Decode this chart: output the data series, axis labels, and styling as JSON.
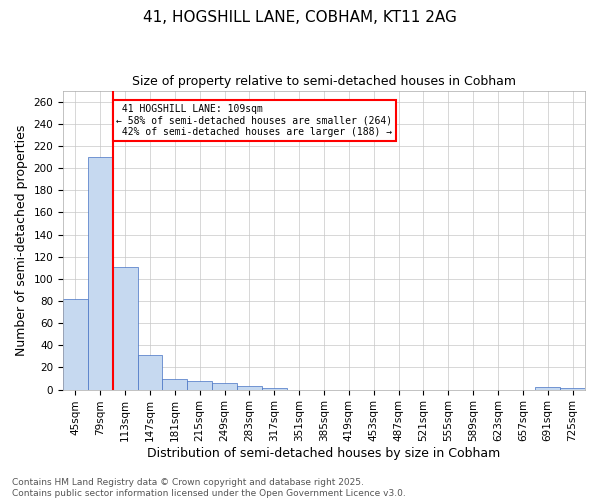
{
  "title": "41, HOGSHILL LANE, COBHAM, KT11 2AG",
  "subtitle": "Size of property relative to semi-detached houses in Cobham",
  "xlabel": "Distribution of semi-detached houses by size in Cobham",
  "ylabel": "Number of semi-detached properties",
  "categories": [
    "45sqm",
    "79sqm",
    "113sqm",
    "147sqm",
    "181sqm",
    "215sqm",
    "249sqm",
    "283sqm",
    "317sqm",
    "351sqm",
    "385sqm",
    "419sqm",
    "453sqm",
    "487sqm",
    "521sqm",
    "555sqm",
    "589sqm",
    "623sqm",
    "657sqm",
    "691sqm",
    "725sqm"
  ],
  "values": [
    82,
    210,
    111,
    31,
    10,
    8,
    6,
    3,
    1,
    0,
    0,
    0,
    0,
    0,
    0,
    0,
    0,
    0,
    0,
    2,
    1
  ],
  "bar_color": "#c6d9f0",
  "bar_edge_color": "#4472c4",
  "property_line_x": 1.5,
  "property_label": "41 HOGSHILL LANE: 109sqm",
  "smaller_pct": "58%",
  "smaller_count": 264,
  "larger_pct": "42%",
  "larger_count": 188,
  "annotation_box_color": "#ff0000",
  "line_color": "#ff0000",
  "ylim": [
    0,
    270
  ],
  "yticks": [
    0,
    20,
    40,
    60,
    80,
    100,
    120,
    140,
    160,
    180,
    200,
    220,
    240,
    260
  ],
  "footer": "Contains HM Land Registry data © Crown copyright and database right 2025.\nContains public sector information licensed under the Open Government Licence v3.0.",
  "title_fontsize": 11,
  "subtitle_fontsize": 9,
  "axis_label_fontsize": 9,
  "tick_fontsize": 7.5,
  "footer_fontsize": 6.5,
  "background_color": "#ffffff",
  "grid_color": "#c8c8c8"
}
